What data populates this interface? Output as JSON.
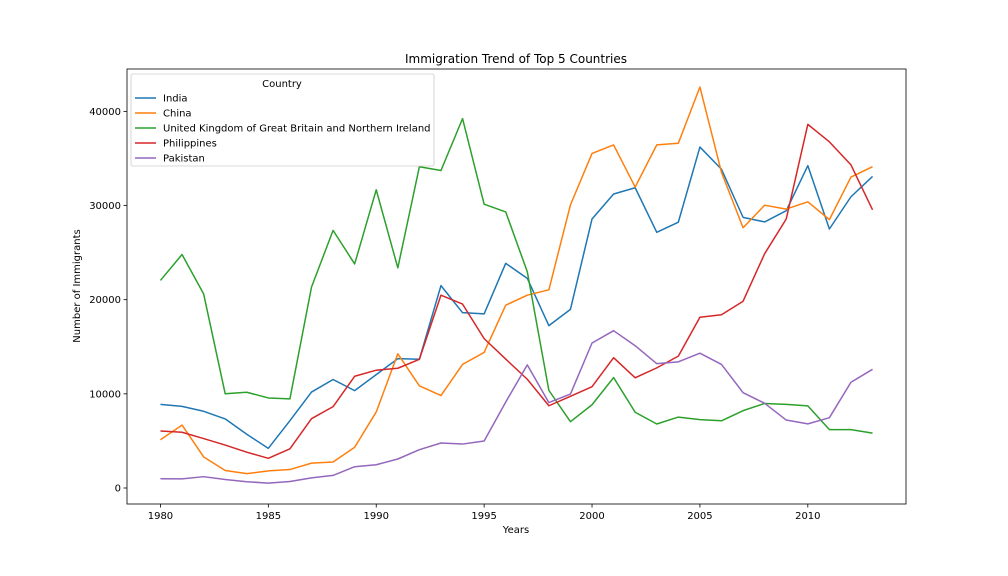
{
  "chart_data": {
    "type": "line",
    "title": "Immigration Trend of Top 5 Countries",
    "xlabel": "Years",
    "ylabel": "Number of Immigrants",
    "xlim": [
      1978.45,
      2014.55
    ],
    "ylim": [
      -1700,
      44500
    ],
    "xticks": [
      1980,
      1985,
      1990,
      1995,
      2000,
      2005,
      2010
    ],
    "yticks": [
      0,
      10000,
      20000,
      30000,
      40000
    ],
    "grid": false,
    "legend": {
      "title": "Country",
      "placement": "top-left"
    },
    "x": [
      1980,
      1981,
      1982,
      1983,
      1984,
      1985,
      1986,
      1987,
      1988,
      1989,
      1990,
      1991,
      1992,
      1993,
      1994,
      1995,
      1996,
      1997,
      1998,
      1999,
      2000,
      2001,
      2002,
      2003,
      2004,
      2005,
      2006,
      2007,
      2008,
      2009,
      2010,
      2011,
      2012,
      2013
    ],
    "series": [
      {
        "name": "India",
        "color": "#1f77b4",
        "values": [
          8880,
          8670,
          8147,
          7338,
          5704,
          4211,
          7150,
          10189,
          11522,
          10343,
          12041,
          13734,
          13673,
          21496,
          18620,
          18489,
          23859,
          22268,
          17241,
          18974,
          28572,
          31223,
          31889,
          27155,
          28235,
          36210,
          33848,
          28742,
          28261,
          29456,
          34235,
          27509,
          30933,
          33087
        ]
      },
      {
        "name": "China",
        "color": "#ff7f0e",
        "values": [
          5123,
          6682,
          3308,
          1863,
          1527,
          1816,
          1960,
          2643,
          2758,
          4323,
          8076,
          14255,
          10846,
          9817,
          13128,
          14398,
          19415,
          20475,
          21049,
          30069,
          35529,
          36434,
          31961,
          36439,
          36619,
          42584,
          33518,
          27642,
          30037,
          29622,
          30391,
          28502,
          33024,
          34129
        ]
      },
      {
        "name": "United Kingdom of Great Britain and Northern Ireland",
        "color": "#2ca02c",
        "values": [
          22045,
          24796,
          20620,
          10015,
          10170,
          9564,
          9470,
          21337,
          27359,
          23795,
          31668,
          23380,
          34123,
          33720,
          39231,
          30145,
          29322,
          22965,
          10367,
          7045,
          8840,
          11728,
          8046,
          6797,
          7533,
          7258,
          7140,
          8216,
          8979,
          8876,
          8724,
          6204,
          6195,
          5827
        ]
      },
      {
        "name": "Philippines",
        "color": "#d62728",
        "values": [
          6051,
          5921,
          5249,
          4562,
          3801,
          3150,
          4166,
          7360,
          8639,
          11865,
          12509,
          12718,
          13670,
          20479,
          19532,
          15864,
          13692,
          11549,
          8735,
          9734,
          10763,
          13836,
          11707,
          12758,
          14004,
          18139,
          18400,
          19837,
          24887,
          28573,
          38617,
          36765,
          34315,
          29544
        ]
      },
      {
        "name": "Pakistan",
        "color": "#9467bd",
        "values": [
          978,
          972,
          1201,
          900,
          668,
          514,
          691,
          1072,
          1334,
          2261,
          2470,
          3079,
          4071,
          4777,
          4666,
          4994,
          9125,
          13073,
          9068,
          9979,
          15400,
          16708,
          15110,
          13205,
          13399,
          14314,
          13127,
          10124,
          8994,
          7217,
          6811,
          7468,
          11227,
          12603
        ]
      }
    ]
  }
}
